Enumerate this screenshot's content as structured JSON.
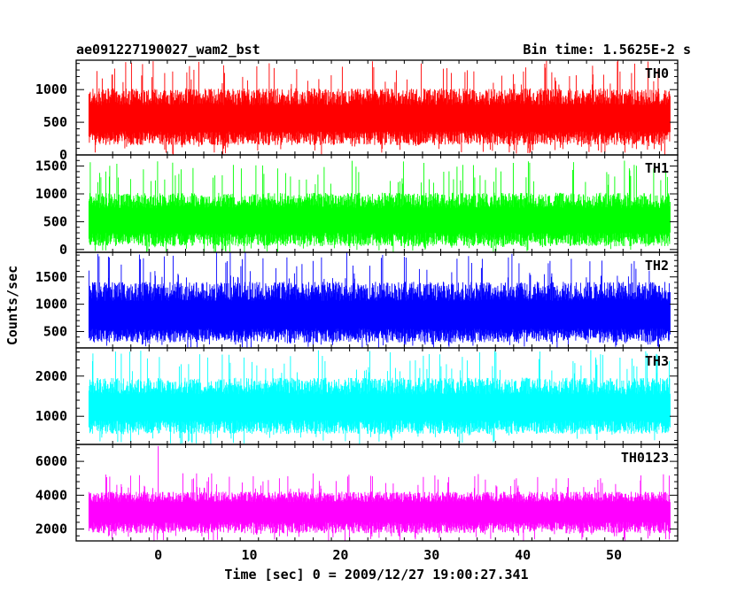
{
  "chart_data": {
    "type": "line",
    "title": "ae091227190027_wam2_bst",
    "subtitle": "Bin time: 1.5625E-2 s",
    "xlabel": "Time [sec] 0 = 2009/12/27 19:00:27.341",
    "ylabel": "Counts/sec",
    "xlim": [
      -9,
      57
    ],
    "x_ticks": [
      0,
      10,
      20,
      30,
      40,
      50
    ],
    "data_x_range": [
      -7.6,
      56.2
    ],
    "panels": [
      {
        "name": "TH0",
        "color": "#ff0000",
        "ylim": [
          0,
          1450
        ],
        "y_ticks": [
          0,
          500,
          1000
        ],
        "mean": 620,
        "noise": 200,
        "low_edge": 150,
        "spike_max": 1450
      },
      {
        "name": "TH1",
        "color": "#00ff00",
        "ylim": [
          -50,
          1700
        ],
        "y_ticks": [
          0,
          500,
          1000,
          1500
        ],
        "mean": 600,
        "noise": 210,
        "low_edge": 60,
        "spike_max": 1600
      },
      {
        "name": "TH2",
        "color": "#0000ff",
        "ylim": [
          200,
          1950
        ],
        "y_ticks": [
          500,
          1000,
          1500
        ],
        "mean": 870,
        "noise": 270,
        "low_edge": 300,
        "spike_max": 1950
      },
      {
        "name": "TH3",
        "color": "#00ffff",
        "ylim": [
          300,
          2700
        ],
        "y_ticks": [
          1000,
          2000
        ],
        "mean": 1320,
        "noise": 320,
        "low_edge": 560,
        "spike_max": 2650
      },
      {
        "name": "TH0123",
        "color": "#ff00ff",
        "ylim": [
          1300,
          7000
        ],
        "y_ticks": [
          2000,
          4000,
          6000
        ],
        "mean": 3250,
        "noise": 480,
        "low_edge": 1750,
        "spike_max": 5300,
        "peak": {
          "x": 0,
          "y": 6900
        }
      }
    ]
  }
}
